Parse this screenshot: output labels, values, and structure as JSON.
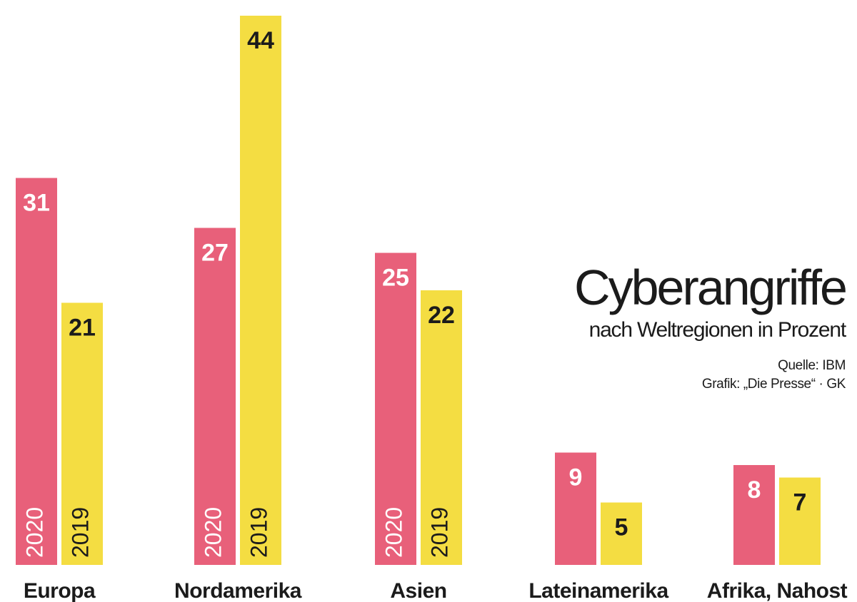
{
  "header": {
    "title": "Cyberangriffe",
    "subtitle": "nach Weltregionen in Prozent",
    "source": "Quelle: IBM",
    "credit": "Grafik: „Die Presse“ · GK"
  },
  "colors": {
    "year_2020": "#e8607a",
    "year_2019": "#f4dd42"
  },
  "chart_data": {
    "type": "bar",
    "title": "Cyberangriffe",
    "subtitle": "nach Weltregionen in Prozent",
    "categories": [
      "Europa",
      "Nordamerika",
      "Asien",
      "Lateinamerika",
      "Afrika, Nahost"
    ],
    "series": [
      {
        "name": "2020",
        "values": [
          31,
          27,
          25,
          9,
          8
        ],
        "color": "#e8607a",
        "in_bar_label": [
          true,
          true,
          true,
          false,
          false
        ]
      },
      {
        "name": "2019",
        "values": [
          21,
          44,
          22,
          5,
          7
        ],
        "color": "#f4dd42",
        "in_bar_label": [
          true,
          true,
          true,
          false,
          false
        ]
      }
    ],
    "ylim": [
      0,
      44
    ],
    "grid": false,
    "legend": "none (years printed inside bars)"
  }
}
